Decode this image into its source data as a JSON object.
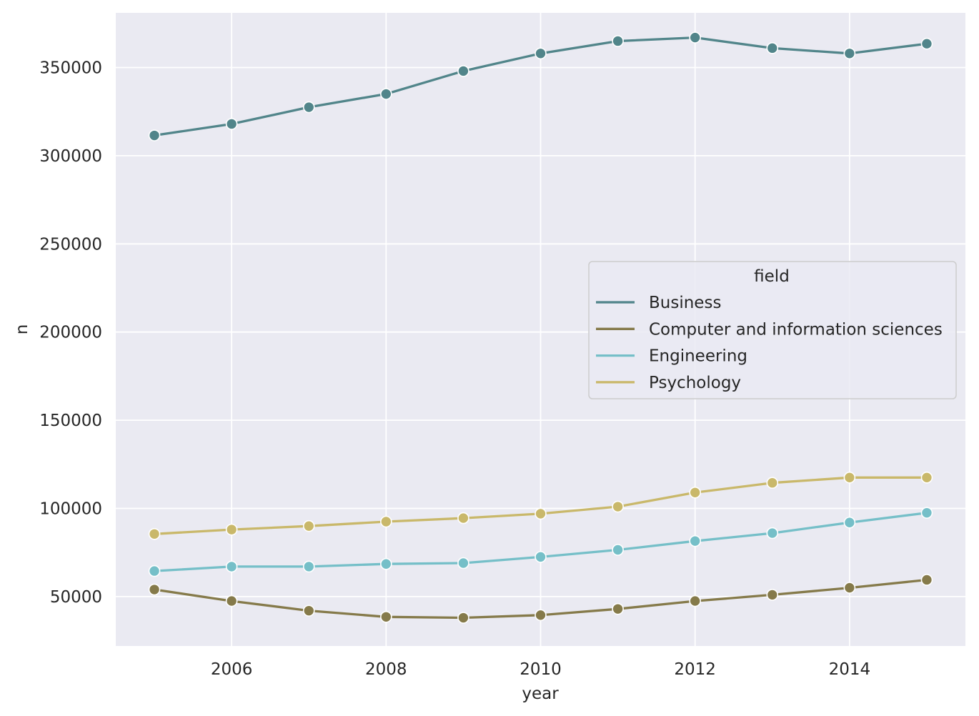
{
  "chart_data": {
    "type": "line",
    "xlabel": "year",
    "ylabel": "n",
    "xlim": [
      2004.5,
      2015.5
    ],
    "ylim": [
      22000,
      381000
    ],
    "x_ticks": [
      2006,
      2008,
      2010,
      2012,
      2014
    ],
    "y_ticks": [
      50000,
      100000,
      150000,
      200000,
      250000,
      300000,
      350000
    ],
    "grid": true,
    "legend": {
      "title": "field",
      "placement": "center-right"
    },
    "x": [
      2005,
      2006,
      2007,
      2008,
      2009,
      2010,
      2011,
      2012,
      2013,
      2014,
      2015
    ],
    "series": [
      {
        "name": "Business",
        "color": "#51858a",
        "values": [
          311500,
          318000,
          327500,
          335000,
          348000,
          358000,
          365000,
          367000,
          361000,
          358000,
          363500
        ]
      },
      {
        "name": "Computer and information sciences",
        "color": "#857a4a",
        "values": [
          54000,
          47500,
          42000,
          38500,
          38000,
          39500,
          43000,
          47500,
          51000,
          55000,
          59500
        ]
      },
      {
        "name": "Engineering",
        "color": "#75bfc8",
        "values": [
          64500,
          67000,
          67000,
          68500,
          69000,
          72500,
          76500,
          81500,
          86000,
          92000,
          97500
        ]
      },
      {
        "name": "Psychology",
        "color": "#c9b86a",
        "values": [
          85500,
          88000,
          90000,
          92500,
          94500,
          97000,
          101000,
          109000,
          114500,
          117500,
          117500
        ]
      }
    ]
  },
  "colors": {
    "plot_background": "#eaeaf2",
    "grid": "#ffffff",
    "text": "#262626"
  }
}
